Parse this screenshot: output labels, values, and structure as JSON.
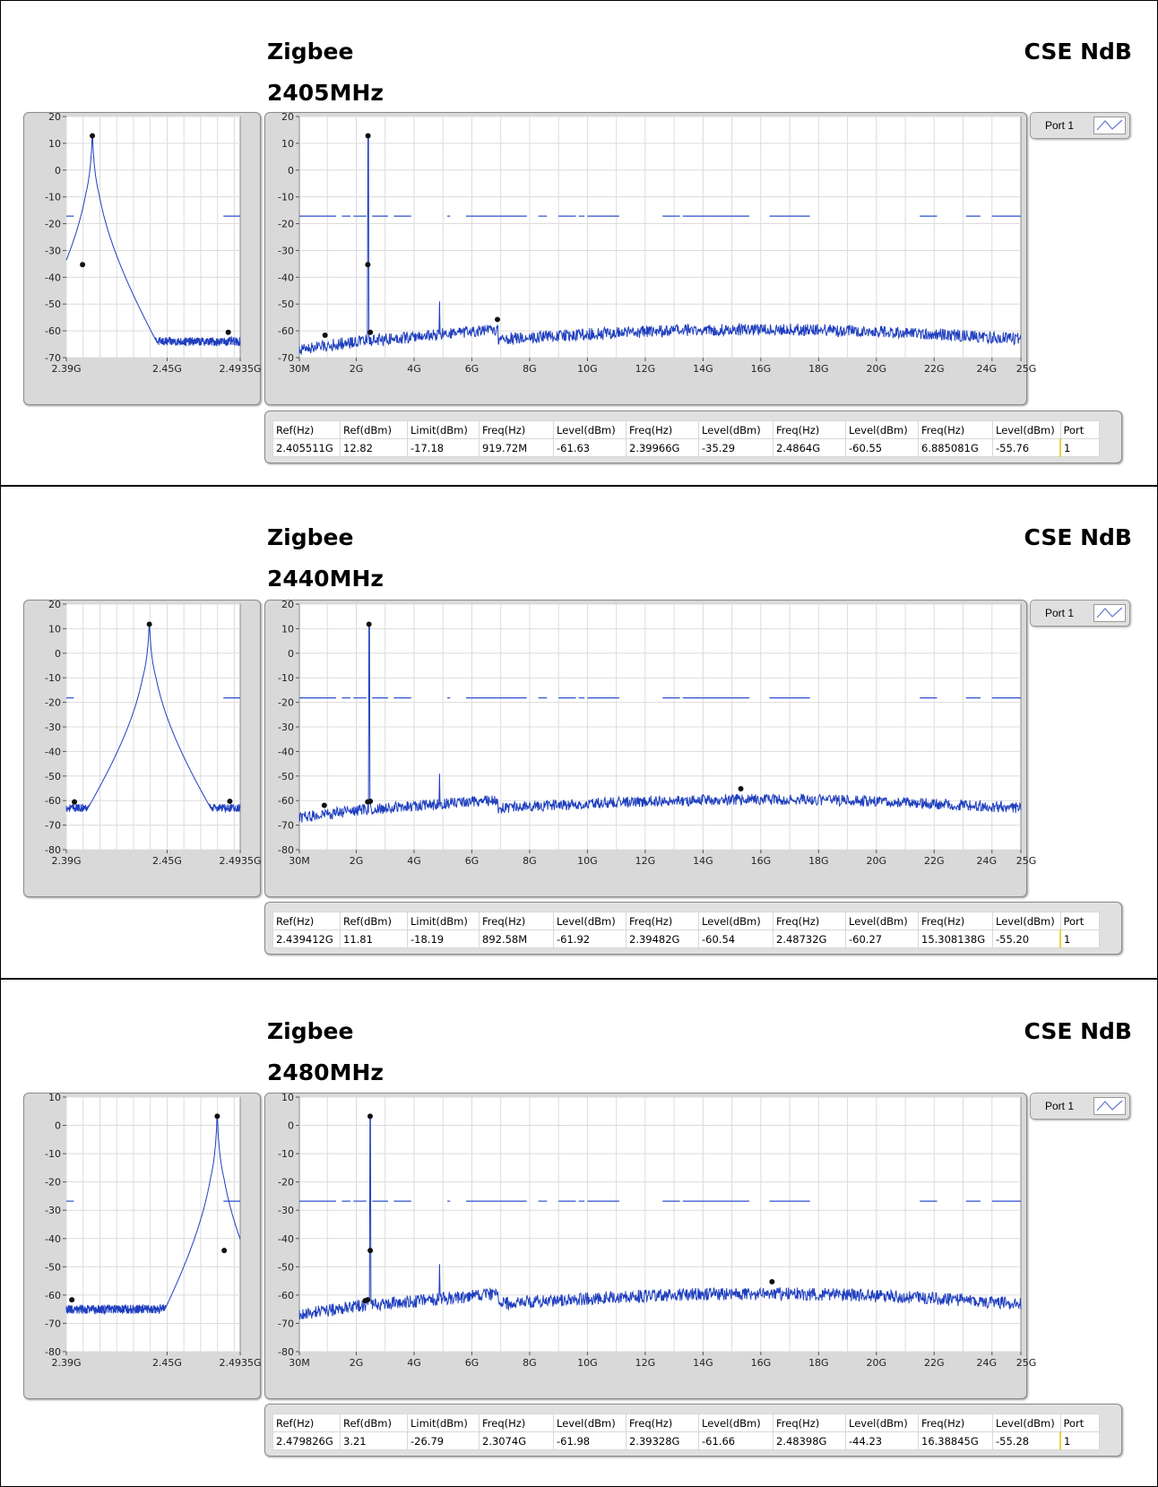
{
  "sections": [
    {
      "title": "Zigbee",
      "right_label": "CSE NdB",
      "subtitle": "2405MHz",
      "port_label": "Port 1",
      "table": {
        "headers": [
          "Ref(Hz)",
          "Ref(dBm)",
          "Limit(dBm)",
          "Freq(Hz)",
          "Level(dBm)",
          "Freq(Hz)",
          "Level(dBm)",
          "Freq(Hz)",
          "Level(dBm)",
          "Freq(Hz)",
          "Level(dBm)",
          "Port"
        ],
        "row": [
          "2.405511G",
          "12.82",
          "-17.18",
          "919.72M",
          "-61.63",
          "2.39966G",
          "-35.29",
          "2.4864G",
          "-60.55",
          "6.885081G",
          "-55.76",
          "1"
        ]
      }
    },
    {
      "title": "Zigbee",
      "right_label": "CSE NdB",
      "subtitle": "2440MHz",
      "port_label": "Port 1",
      "table": {
        "headers": [
          "Ref(Hz)",
          "Ref(dBm)",
          "Limit(dBm)",
          "Freq(Hz)",
          "Level(dBm)",
          "Freq(Hz)",
          "Level(dBm)",
          "Freq(Hz)",
          "Level(dBm)",
          "Freq(Hz)",
          "Level(dBm)",
          "Port"
        ],
        "row": [
          "2.439412G",
          "11.81",
          "-18.19",
          "892.58M",
          "-61.92",
          "2.39482G",
          "-60.54",
          "2.48732G",
          "-60.27",
          "15.308138G",
          "-55.20",
          "1"
        ]
      }
    },
    {
      "title": "Zigbee",
      "right_label": "CSE NdB",
      "subtitle": "2480MHz",
      "port_label": "Port 1",
      "table": {
        "headers": [
          "Ref(Hz)",
          "Ref(dBm)",
          "Limit(dBm)",
          "Freq(Hz)",
          "Level(dBm)",
          "Freq(Hz)",
          "Level(dBm)",
          "Freq(Hz)",
          "Level(dBm)",
          "Freq(Hz)",
          "Level(dBm)",
          "Port"
        ],
        "row": [
          "2.479826G",
          "3.21",
          "-26.79",
          "2.3074G",
          "-61.98",
          "2.39328G",
          "-61.66",
          "2.48398G",
          "-44.23",
          "16.38845G",
          "-55.28",
          "1"
        ]
      }
    }
  ],
  "chart_data": [
    {
      "type": "line",
      "chart": "2405MHz narrow band",
      "trace_color": "#1f3fbf",
      "xlim": [
        2.39,
        2.4935
      ],
      "ylim": [
        -70,
        20
      ],
      "x_ticks": [
        "2.39G",
        "2.45G",
        "2.4935G"
      ],
      "x_tick_values": [
        2.39,
        2.45,
        2.4935
      ],
      "y_ticks": [
        20,
        10,
        0,
        -10,
        -20,
        -30,
        -40,
        -50,
        -60,
        -70
      ],
      "limit_level": -17.18,
      "peak": {
        "x": 2.405511,
        "y": 12.82
      },
      "noise_floor": -64,
      "markers": [
        {
          "x": 2.405511,
          "y": 12.82
        },
        {
          "x": 2.39966,
          "y": -35.29
        },
        {
          "x": 2.4864,
          "y": -60.55
        }
      ]
    },
    {
      "type": "line",
      "chart": "2405MHz wide band",
      "trace_color": "#1f3fbf",
      "xlim": [
        0.03,
        25
      ],
      "ylim": [
        -70,
        20
      ],
      "x_ticks": [
        "30M",
        "2G",
        "4G",
        "6G",
        "8G",
        "10G",
        "12G",
        "14G",
        "16G",
        "18G",
        "20G",
        "22G",
        "24G",
        "25G"
      ],
      "x_tick_values": [
        0.03,
        2,
        4,
        6,
        8,
        10,
        12,
        14,
        16,
        18,
        20,
        22,
        24,
        25
      ],
      "y_ticks": [
        20,
        10,
        0,
        -10,
        -20,
        -30,
        -40,
        -50,
        -60,
        -70
      ],
      "limit_level": -17.18,
      "carrier": {
        "x": 2.405511,
        "y": 12.82
      },
      "markers": [
        {
          "x": 0.91972,
          "y": -61.63
        },
        {
          "x": 2.405511,
          "y": 12.82
        },
        {
          "x": 2.39966,
          "y": -35.29
        },
        {
          "x": 2.4864,
          "y": -60.55
        },
        {
          "x": 6.885081,
          "y": -55.76
        }
      ]
    },
    {
      "type": "line",
      "chart": "2440MHz narrow band",
      "trace_color": "#1f3fbf",
      "xlim": [
        2.39,
        2.4935
      ],
      "ylim": [
        -80,
        20
      ],
      "x_ticks": [
        "2.39G",
        "2.45G",
        "2.4935G"
      ],
      "x_tick_values": [
        2.39,
        2.45,
        2.4935
      ],
      "y_ticks": [
        20,
        10,
        0,
        -10,
        -20,
        -30,
        -40,
        -50,
        -60,
        -70,
        -80
      ],
      "limit_level": -18.19,
      "peak": {
        "x": 2.439412,
        "y": 11.81
      },
      "noise_floor": -63,
      "markers": [
        {
          "x": 2.439412,
          "y": 11.81
        },
        {
          "x": 2.39482,
          "y": -60.54
        },
        {
          "x": 2.48732,
          "y": -60.27
        }
      ]
    },
    {
      "type": "line",
      "chart": "2440MHz wide band",
      "trace_color": "#1f3fbf",
      "xlim": [
        0.03,
        25
      ],
      "ylim": [
        -80,
        20
      ],
      "x_ticks": [
        "30M",
        "2G",
        "4G",
        "6G",
        "8G",
        "10G",
        "12G",
        "14G",
        "16G",
        "18G",
        "20G",
        "22G",
        "24G",
        "25G"
      ],
      "x_tick_values": [
        0.03,
        2,
        4,
        6,
        8,
        10,
        12,
        14,
        16,
        18,
        20,
        22,
        24,
        25
      ],
      "y_ticks": [
        20,
        10,
        0,
        -10,
        -20,
        -30,
        -40,
        -50,
        -60,
        -70,
        -80
      ],
      "limit_level": -18.19,
      "carrier": {
        "x": 2.439412,
        "y": 11.81
      },
      "markers": [
        {
          "x": 0.89258,
          "y": -61.92
        },
        {
          "x": 2.439412,
          "y": 11.81
        },
        {
          "x": 2.39482,
          "y": -60.54
        },
        {
          "x": 2.48732,
          "y": -60.27
        },
        {
          "x": 15.308138,
          "y": -55.2
        }
      ]
    },
    {
      "type": "line",
      "chart": "2480MHz narrow band",
      "trace_color": "#1f3fbf",
      "xlim": [
        2.39,
        2.4935
      ],
      "ylim": [
        -80,
        10
      ],
      "x_ticks": [
        "2.39G",
        "2.45G",
        "2.4935G"
      ],
      "x_tick_values": [
        2.39,
        2.45,
        2.4935
      ],
      "y_ticks": [
        10,
        0,
        -10,
        -20,
        -30,
        -40,
        -50,
        -60,
        -70,
        -80
      ],
      "limit_level": -26.79,
      "peak": {
        "x": 2.479826,
        "y": 3.21
      },
      "noise_floor": -65,
      "markers": [
        {
          "x": 2.479826,
          "y": 3.21
        },
        {
          "x": 2.39328,
          "y": -61.66
        },
        {
          "x": 2.48398,
          "y": -44.23
        }
      ]
    },
    {
      "type": "line",
      "chart": "2480MHz wide band",
      "trace_color": "#1f3fbf",
      "xlim": [
        0.03,
        25
      ],
      "ylim": [
        -80,
        10
      ],
      "x_ticks": [
        "30M",
        "2G",
        "4G",
        "6G",
        "8G",
        "10G",
        "12G",
        "14G",
        "16G",
        "18G",
        "20G",
        "22G",
        "24G",
        "25G"
      ],
      "x_tick_values": [
        0.03,
        2,
        4,
        6,
        8,
        10,
        12,
        14,
        16,
        18,
        20,
        22,
        24,
        25
      ],
      "y_ticks": [
        10,
        0,
        -10,
        -20,
        -30,
        -40,
        -50,
        -60,
        -70,
        -80
      ],
      "limit_level": -26.79,
      "carrier": {
        "x": 2.479826,
        "y": 3.21
      },
      "markers": [
        {
          "x": 2.3074,
          "y": -61.98
        },
        {
          "x": 2.479826,
          "y": 3.21
        },
        {
          "x": 2.39328,
          "y": -61.66
        },
        {
          "x": 2.48398,
          "y": -44.23
        },
        {
          "x": 16.38845,
          "y": -55.28
        }
      ]
    }
  ]
}
